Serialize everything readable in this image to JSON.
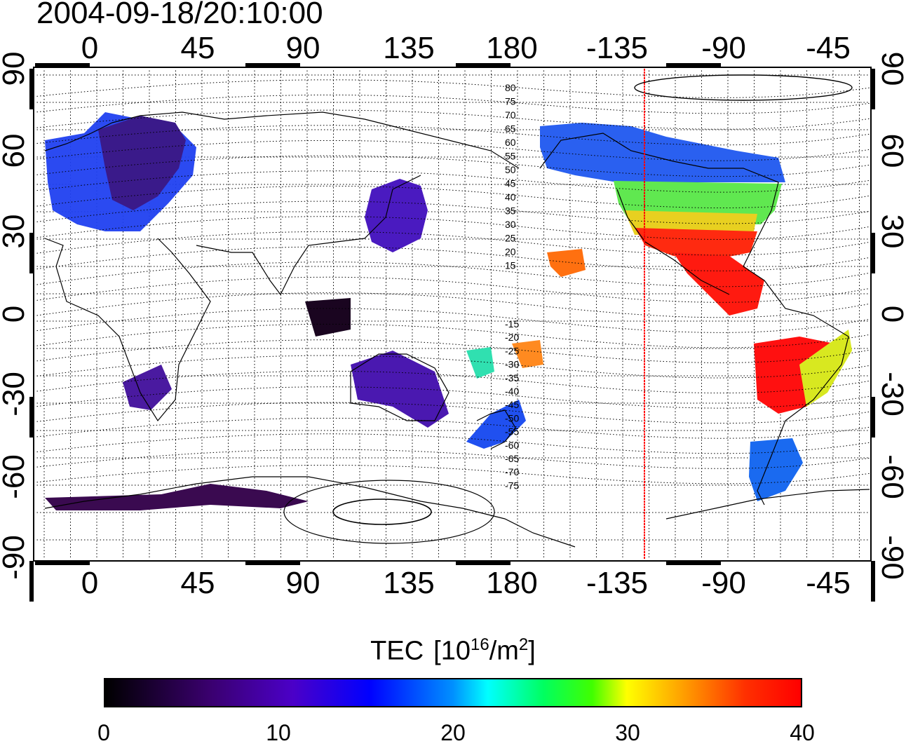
{
  "title": "2004-09-18/20:10:00",
  "map": {
    "lon_ticks_top": [
      "0",
      "45",
      "90",
      "135",
      "180",
      "-135",
      "-90",
      "-45"
    ],
    "lon_ticks_bottom": [
      "0",
      "45",
      "90",
      "135",
      "180",
      "-135",
      "-90",
      "-45"
    ],
    "lat_ticks_left": [
      "90",
      "60",
      "30",
      "0",
      "-30",
      "-60",
      "-90"
    ],
    "lat_ticks_right": [
      "90",
      "60",
      "30",
      "0",
      "-30",
      "-60",
      "-90"
    ],
    "contour_labels_north": [
      "80",
      "75",
      "70",
      "65",
      "60",
      "55",
      "50",
      "45",
      "40",
      "35",
      "30",
      "25",
      "20",
      "15"
    ],
    "contour_labels_south": [
      "-15",
      "-20",
      "-25",
      "-30",
      "-35",
      "-40",
      "-45",
      "-50",
      "-55",
      "-60",
      "-65",
      "-70",
      "-75"
    ],
    "terminator_color": "#ff0000"
  },
  "colorbar": {
    "label_main": "TEC",
    "label_unit_prefix": "[10",
    "label_unit_exp": "16",
    "label_unit_mid": "/m",
    "label_unit_exp2": "2",
    "label_unit_suffix": "]",
    "ticks": [
      "0",
      "10",
      "20",
      "30",
      "40"
    ],
    "min": 0,
    "max": 40
  },
  "colors": {
    "blue": "#1a3cff",
    "purple": "#4a1aa0",
    "dark": "#230a2e",
    "green": "#3cf03c",
    "yellow": "#f0f000",
    "orange": "#ff8000",
    "red": "#ff1010",
    "cyan": "#20e8f0"
  }
}
